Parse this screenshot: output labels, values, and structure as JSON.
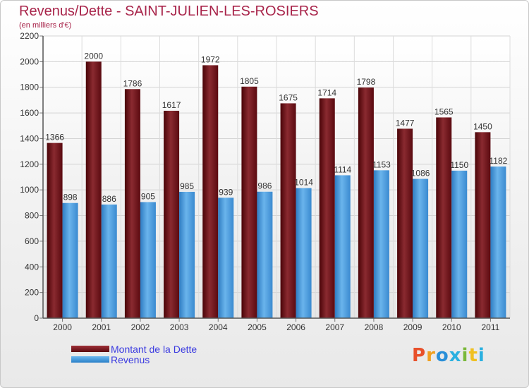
{
  "title": "Revenus/Dette - SAINT-JULIEN-LES-ROSIERS",
  "subtitle": "(en milliers d'€)",
  "logo": {
    "text": "Proxiti",
    "colors": [
      "#e8502a",
      "#f0a020",
      "#2a8fd8",
      "#2ab0e0",
      "#7ab83a",
      "#f0c020",
      "#2ab0e0"
    ]
  },
  "legend": [
    {
      "label": "Montant de la Dette",
      "color": "#6e0f15"
    },
    {
      "label": "Revenus",
      "color": "#4a9fe0"
    }
  ],
  "chart_data": {
    "type": "bar",
    "categories": [
      "2000",
      "2001",
      "2002",
      "2003",
      "2004",
      "2005",
      "2006",
      "2007",
      "2008",
      "2009",
      "2010",
      "2011"
    ],
    "series": [
      {
        "name": "Montant de la Dette",
        "color": "#7a1a20",
        "values": [
          1366,
          2000,
          1786,
          1617,
          1972,
          1805,
          1675,
          1714,
          1798,
          1477,
          1565,
          1450
        ]
      },
      {
        "name": "Revenus",
        "color": "#4a9fe0",
        "values": [
          898,
          886,
          905,
          985,
          939,
          986,
          1014,
          1114,
          1153,
          1086,
          1150,
          1182
        ]
      }
    ],
    "ylim": [
      0,
      2200
    ],
    "yticks": [
      0,
      200,
      400,
      600,
      800,
      1000,
      1200,
      1400,
      1600,
      1800,
      2000,
      2200
    ],
    "grid": true,
    "legend_position": "bottom-left"
  }
}
